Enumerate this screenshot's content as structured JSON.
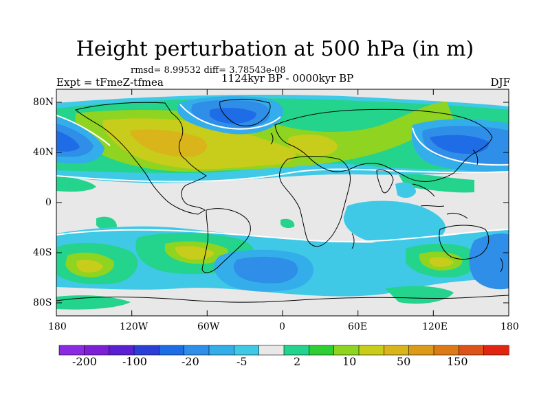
{
  "title": "Height perturbation at 500 hPa (in m)",
  "stats": "rmsd= 8.99532  diff= 3.78543e-08",
  "left_string": "Expt = tFmeZ-tfmea",
  "center_string": "1124kyr BP - 0000kyr BP",
  "right_string": "DJF",
  "lon_labels": [
    "180",
    "120W",
    "60W",
    "0",
    "60E",
    "120E",
    "180"
  ],
  "lat_labels": [
    "80N",
    "40N",
    "0",
    "40S",
    "80S"
  ],
  "colorbar": {
    "colors": [
      "#8a2be2",
      "#7b20d6",
      "#5a1fd0",
      "#2b3ed6",
      "#1e6ce6",
      "#2f8ee8",
      "#34aeea",
      "#3fc9e6",
      "#e8e8e8",
      "#24d38c",
      "#2fcf33",
      "#8fd420",
      "#c8cc1a",
      "#d9b41a",
      "#dc9a19",
      "#dc7a18",
      "#dd5218",
      "#e02510"
    ],
    "labels": [
      "-200",
      "-100",
      "-20",
      "-5",
      "2",
      "10",
      "50",
      "150"
    ]
  }
}
